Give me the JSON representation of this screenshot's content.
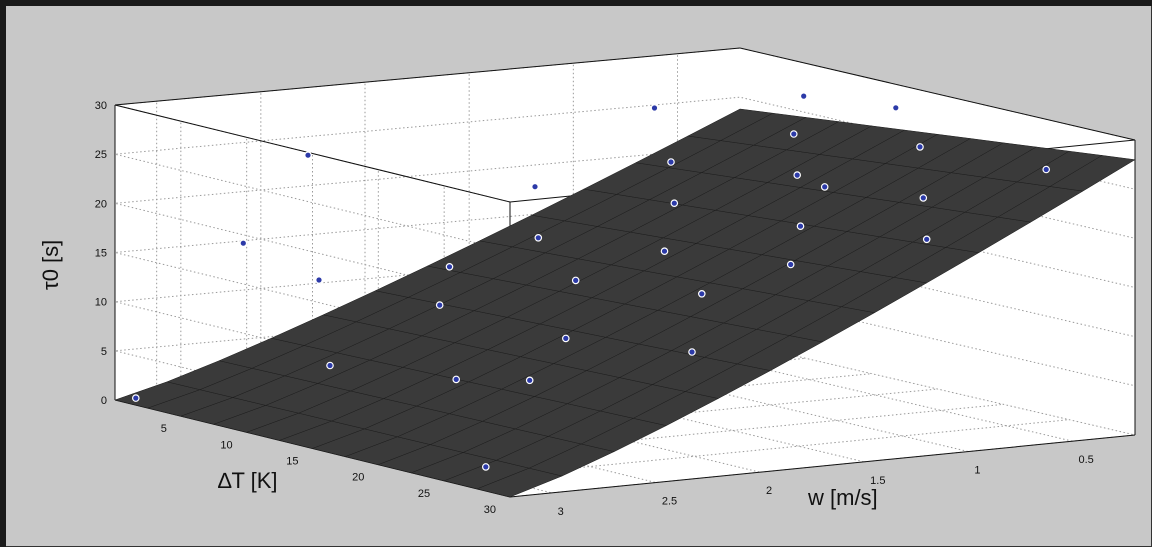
{
  "chart_data": {
    "type": "surface3d",
    "x_axis": {
      "label": "∆T [K]",
      "ticks": [
        5,
        10,
        15,
        20,
        25,
        30
      ],
      "range": [
        0,
        30
      ]
    },
    "y_axis": {
      "label": "w [m/s]",
      "ticks": [
        3,
        2.5,
        2,
        1.5,
        1,
        0.5
      ],
      "range": [
        0.2,
        3.2
      ]
    },
    "z_axis": {
      "label": "τ0 [s]",
      "ticks": [
        0,
        5,
        10,
        15,
        20,
        25,
        30
      ],
      "range": [
        0,
        30
      ]
    },
    "grid": true,
    "surface_color": "#3a3a3a",
    "marker_color": "#2c3aa8",
    "surface_corners": [
      {
        "dT": 0,
        "w": 3.2,
        "tau": 0
      },
      {
        "dT": 30,
        "w": 3.2,
        "tau": 0
      },
      {
        "dT": 0,
        "w": 0.2,
        "tau": 28
      },
      {
        "dT": 30,
        "w": 0.2,
        "tau": 28
      }
    ],
    "points": [
      {
        "dT": 0,
        "w": 3.1,
        "tau": 0
      },
      {
        "dT": 25,
        "w": 3.0,
        "tau": 1
      },
      {
        "dT": 10,
        "w": 2.8,
        "tau": 6
      },
      {
        "dT": 18,
        "w": 2.7,
        "tau": 7
      },
      {
        "dT": 22,
        "w": 2.6,
        "tau": 8
      },
      {
        "dT": 6,
        "w": 2.6,
        "tau": 13
      },
      {
        "dT": 12,
        "w": 2.4,
        "tau": 12
      },
      {
        "dT": 20,
        "w": 2.3,
        "tau": 11
      },
      {
        "dT": 28,
        "w": 2.2,
        "tau": 12
      },
      {
        "dT": 8,
        "w": 2.1,
        "tau": 14
      },
      {
        "dT": 16,
        "w": 2.0,
        "tau": 15
      },
      {
        "dT": 24,
        "w": 1.9,
        "tau": 16
      },
      {
        "dT": 10,
        "w": 1.8,
        "tau": 17
      },
      {
        "dT": 18,
        "w": 1.7,
        "tau": 18
      },
      {
        "dT": 26,
        "w": 1.6,
        "tau": 19
      },
      {
        "dT": 5,
        "w": 1.5,
        "tau": 20
      },
      {
        "dT": 14,
        "w": 1.4,
        "tau": 21
      },
      {
        "dT": 22,
        "w": 1.3,
        "tau": 21
      },
      {
        "dT": 30,
        "w": 1.2,
        "tau": 22
      },
      {
        "dT": 9,
        "w": 1.1,
        "tau": 23
      },
      {
        "dT": 17,
        "w": 1.0,
        "tau": 24
      },
      {
        "dT": 25,
        "w": 0.9,
        "tau": 24
      },
      {
        "dT": 3,
        "w": 0.8,
        "tau": 26
      },
      {
        "dT": 12,
        "w": 0.7,
        "tau": 26
      },
      {
        "dT": 20,
        "w": 0.6,
        "tau": 27
      },
      {
        "dT": 28,
        "w": 0.5,
        "tau": 27
      },
      {
        "dT": 8,
        "w": 0.4,
        "tau": 28
      },
      {
        "dT": 15,
        "w": 0.4,
        "tau": 29
      },
      {
        "dT": 5,
        "w": 2.9,
        "tau": 17
      },
      {
        "dT": 2,
        "w": 2.4,
        "tau": 24
      },
      {
        "dT": 27,
        "w": 1.5,
        "tau": 27
      }
    ]
  }
}
